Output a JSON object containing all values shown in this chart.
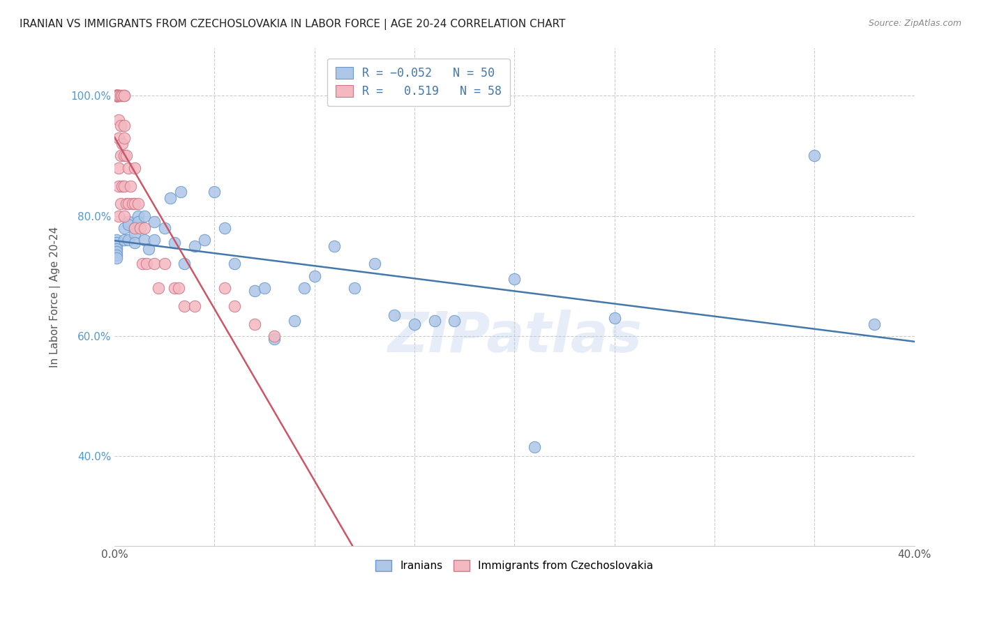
{
  "title": "IRANIAN VS IMMIGRANTS FROM CZECHOSLOVAKIA IN LABOR FORCE | AGE 20-24 CORRELATION CHART",
  "source": "Source: ZipAtlas.com",
  "ylabel": "In Labor Force | Age 20-24",
  "xlim": [
    0.0,
    0.4
  ],
  "ylim": [
    0.25,
    1.08
  ],
  "watermark": "ZIPatlas",
  "iranians_color": "#aec6e8",
  "iranians_edge": "#6699cc",
  "czech_color": "#f4b8c1",
  "czech_edge": "#cc7788",
  "blue_line_color": "#4477aa",
  "pink_line_color": "#cc5566",
  "iranians_x": [
    0.001,
    0.001,
    0.001,
    0.001,
    0.001,
    0.001,
    0.001,
    0.005,
    0.005,
    0.007,
    0.007,
    0.007,
    0.01,
    0.01,
    0.01,
    0.012,
    0.012,
    0.015,
    0.015,
    0.017,
    0.02,
    0.02,
    0.025,
    0.028,
    0.03,
    0.033,
    0.035,
    0.04,
    0.045,
    0.05,
    0.055,
    0.06,
    0.07,
    0.075,
    0.08,
    0.09,
    0.095,
    0.1,
    0.11,
    0.12,
    0.13,
    0.14,
    0.15,
    0.16,
    0.17,
    0.2,
    0.21,
    0.25,
    0.35,
    0.38
  ],
  "iranians_y": [
    0.76,
    0.755,
    0.75,
    0.745,
    0.74,
    0.735,
    0.73,
    0.78,
    0.76,
    0.79,
    0.785,
    0.76,
    0.78,
    0.77,
    0.755,
    0.8,
    0.79,
    0.8,
    0.76,
    0.745,
    0.79,
    0.76,
    0.78,
    0.83,
    0.755,
    0.84,
    0.72,
    0.75,
    0.76,
    0.84,
    0.78,
    0.72,
    0.675,
    0.68,
    0.595,
    0.625,
    0.68,
    0.7,
    0.75,
    0.68,
    0.72,
    0.635,
    0.62,
    0.625,
    0.625,
    0.695,
    0.415,
    0.63,
    0.9,
    0.62
  ],
  "czech_x": [
    0.001,
    0.001,
    0.001,
    0.001,
    0.001,
    0.001,
    0.001,
    0.001,
    0.001,
    0.001,
    0.002,
    0.002,
    0.002,
    0.002,
    0.002,
    0.002,
    0.002,
    0.002,
    0.002,
    0.003,
    0.003,
    0.003,
    0.003,
    0.004,
    0.004,
    0.004,
    0.005,
    0.005,
    0.005,
    0.005,
    0.005,
    0.005,
    0.005,
    0.006,
    0.006,
    0.007,
    0.007,
    0.008,
    0.009,
    0.01,
    0.01,
    0.01,
    0.012,
    0.013,
    0.014,
    0.015,
    0.016,
    0.02,
    0.022,
    0.025,
    0.03,
    0.032,
    0.035,
    0.04,
    0.055,
    0.06,
    0.07,
    0.08
  ],
  "czech_y": [
    1.0,
    1.0,
    1.0,
    1.0,
    1.0,
    1.0,
    1.0,
    1.0,
    1.0,
    1.0,
    1.0,
    1.0,
    1.0,
    1.0,
    0.96,
    0.93,
    0.88,
    0.85,
    0.8,
    1.0,
    0.95,
    0.9,
    0.82,
    1.0,
    0.92,
    0.85,
    1.0,
    1.0,
    0.95,
    0.93,
    0.9,
    0.85,
    0.8,
    0.9,
    0.82,
    0.88,
    0.82,
    0.85,
    0.82,
    0.88,
    0.82,
    0.78,
    0.82,
    0.78,
    0.72,
    0.78,
    0.72,
    0.72,
    0.68,
    0.72,
    0.68,
    0.68,
    0.65,
    0.65,
    0.68,
    0.65,
    0.62,
    0.6
  ]
}
